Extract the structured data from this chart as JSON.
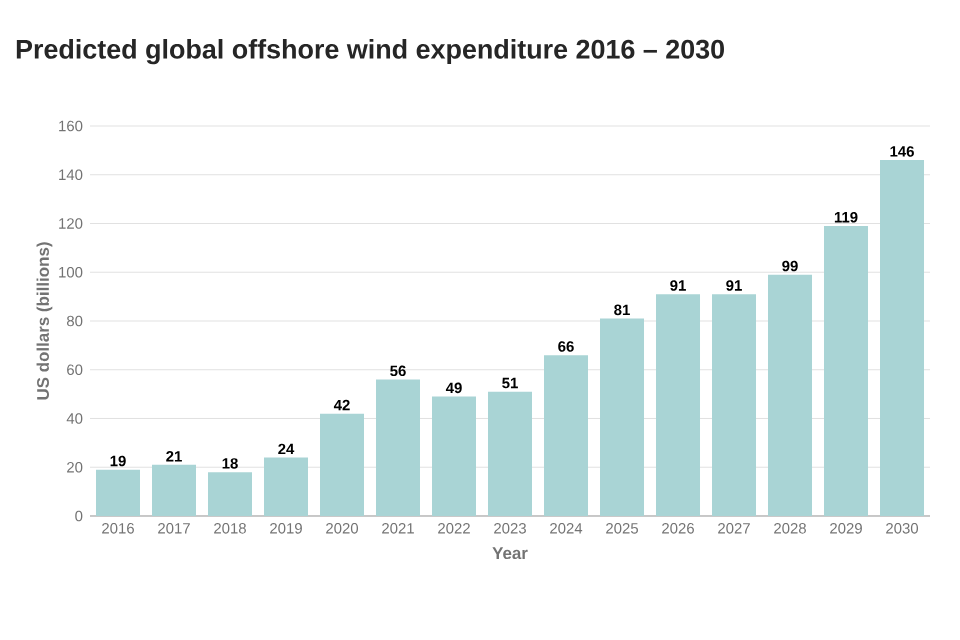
{
  "chart_data": {
    "type": "bar",
    "title": "Predicted global offshore wind expenditure 2016 – 2030",
    "xlabel": "Year",
    "ylabel": "US dollars (billions)",
    "categories": [
      "2016",
      "2017",
      "2018",
      "2019",
      "2020",
      "2021",
      "2022",
      "2023",
      "2024",
      "2025",
      "2026",
      "2027",
      "2028",
      "2029",
      "2030"
    ],
    "values": [
      19,
      21,
      18,
      24,
      42,
      56,
      49,
      51,
      66,
      81,
      91,
      91,
      99,
      119,
      146
    ],
    "color": "#a9d4d5",
    "ylim": [
      0,
      160
    ],
    "yticks": [
      0,
      20,
      40,
      60,
      80,
      100,
      120,
      140,
      160
    ],
    "grid": "y",
    "data_labels": true
  }
}
